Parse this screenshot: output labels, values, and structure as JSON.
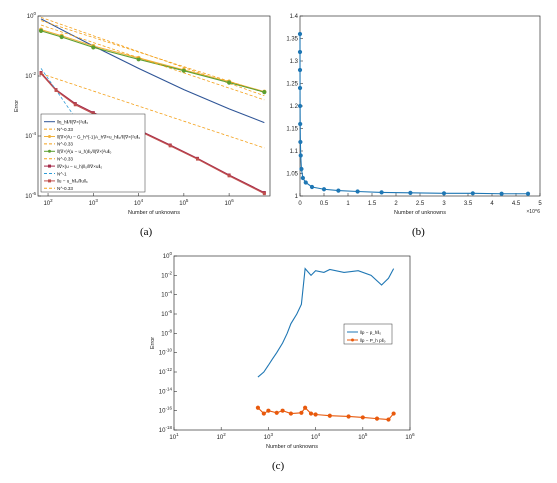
{
  "panels": [
    {
      "caption": "(a)",
      "chart_data": {
        "type": "line",
        "xlabel": "Number of unknowns",
        "ylabel": "Error",
        "xscale": "log",
        "yscale": "log",
        "xlim": [
          60,
          8000000
        ],
        "ylim": [
          1e-06,
          1
        ],
        "xticks": [
          100,
          1000,
          10000,
          100000,
          1000000
        ],
        "xticklabels": [
          "10^2",
          "10^3",
          "10^4",
          "10^5",
          "10^6"
        ],
        "yticks": [
          1e-06,
          0.0001,
          0.01,
          1
        ],
        "yticklabels": [
          "10^-6",
          "10^-4",
          "10^-2",
          "10^0"
        ],
        "grid": false,
        "legend_position": "bottom-left",
        "series": [
          {
            "name": "‖η_h‖/‖(∇×)²u‖₀",
            "color": "#2f5597",
            "marker": "none",
            "dash": "solid",
            "x": [
              70,
              200,
              1000,
              10000,
              100000,
              1000000,
              6000000
            ],
            "y": [
              0.8,
              0.35,
              0.1,
              0.018,
              0.0035,
              0.0008,
              0.00028
            ]
          },
          {
            "name": "N^-0.33",
            "color": "#f4a11a",
            "marker": "none",
            "dash": "dashed",
            "x": [
              70,
              6000000
            ],
            "y": [
              0.9,
              0.0022
            ]
          },
          {
            "name": "‖(∇×)²u − G_h^{-1}A_h∇×u_h‖₀/‖(∇×)²u‖₀",
            "color": "#f1b23c",
            "marker": "o",
            "dash": "solid",
            "x": [
              70,
              200,
              1000,
              10000,
              100000,
              1000000,
              6000000
            ],
            "y": [
              0.35,
              0.22,
              0.1,
              0.04,
              0.016,
              0.0065,
              0.003
            ]
          },
          {
            "name": "N^-0.33",
            "color": "#f4a11a",
            "marker": "none",
            "dash": "dashed",
            "x": [
              70,
              6000000
            ],
            "y": [
              0.7,
              0.0028
            ]
          },
          {
            "name": "‖(∇×)²(u − u_h)‖₀/‖(∇×)²u‖₀",
            "color": "#5c9e31",
            "marker": "o",
            "dash": "solid",
            "x": [
              70,
              200,
              1000,
              10000,
              100000,
              1000000,
              6000000
            ],
            "y": [
              0.32,
              0.2,
              0.09,
              0.036,
              0.015,
              0.006,
              0.0029
            ]
          },
          {
            "name": "N^-0.33",
            "color": "#f4a11a",
            "marker": "none",
            "dash": "dashed",
            "x": [
              70,
              6000000
            ],
            "y": [
              0.012,
              4e-05
            ]
          },
          {
            "name": "‖∇×(u − u_h)‖₀/‖∇×u‖₀",
            "color": "#a52a4a",
            "marker": "s",
            "dash": "solid",
            "x": [
              70,
              150,
              400,
              1000,
              3000,
              10000,
              50000,
              200000,
              1000000,
              6000000
            ],
            "y": [
              0.013,
              0.0035,
              0.0012,
              0.0006,
              0.00028,
              0.00016,
              5e-05,
              1.8e-05,
              5e-06,
              1.3e-06
            ]
          },
          {
            "name": "N^-1",
            "color": "#2e9bd6",
            "marker": "none",
            "dash": "dashed",
            "x": [
              70,
              3000
            ],
            "y": [
              0.018,
              5e-06
            ]
          },
          {
            "name": "‖u − u_h‖₀/‖u‖₀",
            "color": "#c0504d",
            "marker": "s",
            "dash": "solid",
            "x": [
              70,
              150,
              400,
              1000,
              3000,
              10000,
              50000,
              200000,
              1000000,
              6000000
            ],
            "y": [
              0.012,
              0.0033,
              0.0011,
              0.00055,
              0.00026,
              0.00015,
              4.7e-05,
              1.7e-05,
              4.7e-06,
              1.2e-06
            ]
          },
          {
            "name": "N^-0.33",
            "color": "#f4a11a",
            "marker": "none",
            "dash": "dashed",
            "x": [
              70,
              6000000
            ],
            "y": [
              0.5,
              0.0016
            ]
          }
        ]
      }
    },
    {
      "caption": "(b)",
      "chart_data": {
        "type": "line",
        "xlabel": "Number of unknowns",
        "ylabel": "",
        "xlim": [
          0,
          5000000
        ],
        "ylim": [
          1,
          1.4
        ],
        "xticks": [
          0,
          500000,
          1000000,
          1500000,
          2000000,
          2500000,
          3000000,
          3500000,
          4000000,
          4500000,
          5000000
        ],
        "xticklabels": [
          "0",
          "0.5",
          "1",
          "1.5",
          "2",
          "2.5",
          "3",
          "3.5",
          "4",
          "4.5",
          "5"
        ],
        "x_multiplier": "×10^6",
        "yticks": [
          1,
          1.05,
          1.1,
          1.15,
          1.2,
          1.25,
          1.3,
          1.35,
          1.4
        ],
        "yticklabels": [
          "1",
          "1.05",
          "1.1",
          "1.15",
          "1.2",
          "1.25",
          "1.3",
          "1.35",
          "1.4"
        ],
        "grid": false,
        "series": [
          {
            "name": "",
            "color": "#1f77b4",
            "marker": "o",
            "x": [
              60,
              150,
              400,
              900,
              2000,
              4000,
              8000,
              15000,
              30000,
              60000,
              120000,
              250000,
              500000,
              800000,
              1200000,
              1700000,
              2300000,
              3000000,
              3600000,
              4200000,
              4750000
            ],
            "y": [
              1.36,
              1.32,
              1.28,
              1.24,
              1.2,
              1.16,
              1.12,
              1.09,
              1.06,
              1.04,
              1.03,
              1.02,
              1.015,
              1.012,
              1.01,
              1.008,
              1.007,
              1.006,
              1.006,
              1.005,
              1.005
            ]
          }
        ]
      }
    },
    {
      "caption": "(c)",
      "chart_data": {
        "type": "line",
        "xlabel": "Number of unknowns",
        "ylabel": "Error",
        "xscale": "log",
        "yscale": "log",
        "xlim": [
          10,
          1000000
        ],
        "ylim": [
          1e-18,
          1
        ],
        "xticks": [
          10,
          100,
          1000,
          10000,
          100000,
          1000000
        ],
        "xticklabels": [
          "10^1",
          "10^2",
          "10^3",
          "10^4",
          "10^5",
          "10^6"
        ],
        "yticks": [
          1,
          0.01,
          0.0001,
          1e-06,
          1e-08,
          1e-10,
          1e-12,
          1e-14,
          1e-16,
          1e-18
        ],
        "yticklabels": [
          "10^0",
          "10^-2",
          "10^-4",
          "10^-6",
          "10^-8",
          "10^-10",
          "10^-12",
          "10^-14",
          "10^-16",
          "10^-18"
        ],
        "grid": false,
        "legend_position": "right-middle",
        "series": [
          {
            "name": "‖p − p_h‖₀",
            "color": "#1f77b4",
            "marker": "none",
            "x": [
              600,
              800,
              1000,
              1200,
              1500,
              2000,
              2500,
              3000,
              4000,
              5000,
              6000,
              8000,
              10000,
              15000,
              20000,
              40000,
              80000,
              150000,
              250000,
              350000,
              450000
            ],
            "y": [
              3e-13,
              1e-12,
              5e-12,
              2e-11,
              1e-10,
              1e-09,
              1e-08,
              1e-07,
              1e-06,
              1e-05,
              0.05,
              0.01,
              0.03,
              0.02,
              0.04,
              0.02,
              0.03,
              0.01,
              0.001,
              0.005,
              0.05
            ]
          },
          {
            "name": "‖p − P_h p‖₀",
            "color": "#e8590c",
            "marker": "o",
            "x": [
              600,
              800,
              1000,
              1500,
              2000,
              3000,
              5000,
              6000,
              8000,
              10000,
              20000,
              50000,
              100000,
              200000,
              350000,
              450000
            ],
            "y": [
              2e-16,
              5e-17,
              1e-16,
              6e-17,
              1e-16,
              5e-17,
              6e-17,
              2e-16,
              5e-17,
              4e-17,
              3e-17,
              2.5e-17,
              2e-17,
              1.5e-17,
              1.2e-17,
              5e-17
            ]
          }
        ]
      }
    }
  ]
}
